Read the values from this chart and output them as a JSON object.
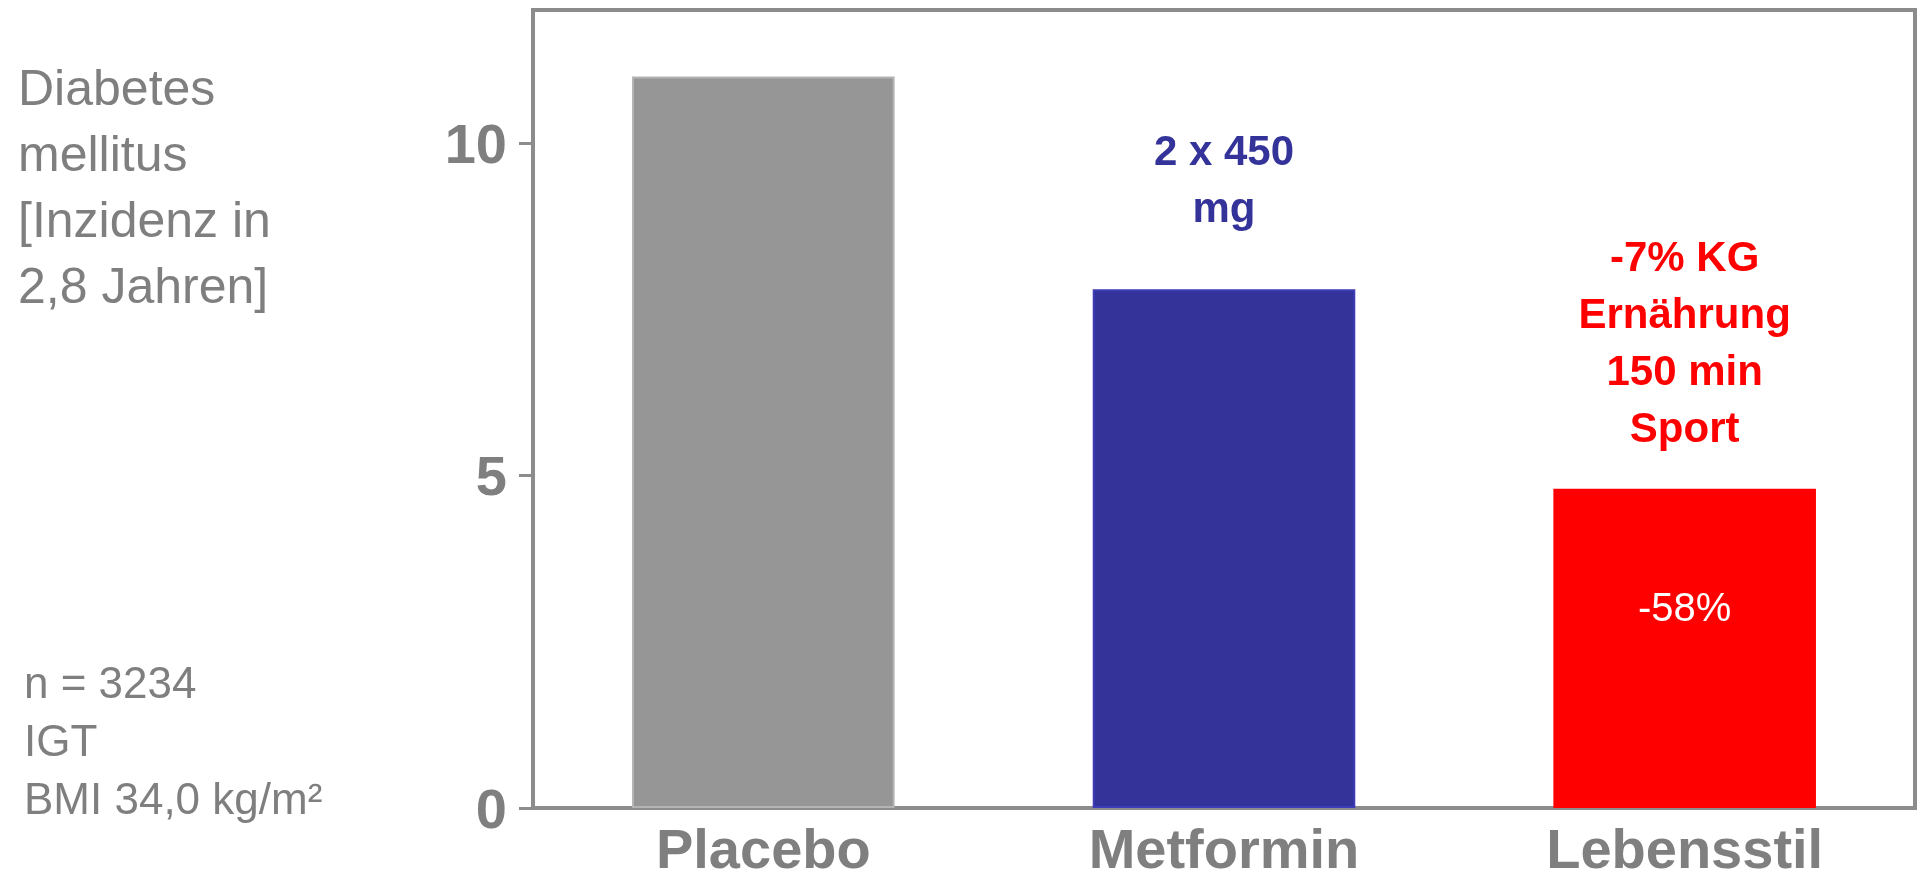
{
  "chart_data": {
    "type": "bar",
    "ylabel": "Diabetes mellitus [Inzidenz in 2,8 Jahren]",
    "categories": [
      "Placebo",
      "Metformin",
      "Lebensstil"
    ],
    "values": [
      11.0,
      7.8,
      4.8
    ],
    "colors": [
      "#969696",
      "#333399",
      "#ff0000"
    ],
    "ylim": [
      0,
      12
    ],
    "yticks": [
      0,
      5,
      10
    ],
    "grid": false,
    "annotations": [
      "2 x 450 mg",
      "-7% KG Ernährung 150 min Sport",
      "-58%",
      "n = 3234",
      "IGT",
      "BMI 34,0 kg/m²"
    ]
  }
}
